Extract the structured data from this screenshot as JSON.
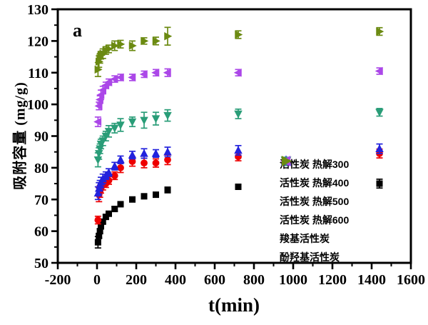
{
  "panel_label": "a",
  "chart_data": {
    "type": "scatter",
    "title": "",
    "xlabel": "t(min)",
    "ylabel": "吸附容量 (mg/g)",
    "xlim": [
      -200,
      1600
    ],
    "ylim": [
      50,
      130
    ],
    "x_ticks": [
      -200,
      0,
      200,
      400,
      600,
      800,
      1000,
      1200,
      1400,
      1600
    ],
    "x_minor_step": 100,
    "y_ticks": [
      50,
      60,
      70,
      80,
      90,
      100,
      110,
      120,
      130
    ],
    "y_minor_step": 5,
    "grid": false,
    "legend_position": "inside lower right",
    "error_bars": true,
    "x": [
      5,
      10,
      15,
      20,
      30,
      45,
      60,
      90,
      120,
      180,
      240,
      300,
      360,
      720,
      1440
    ],
    "series": [
      {
        "key": "ac-pyrolysis-300",
        "name": "活性炭 热解300",
        "marker": "square",
        "color": "#000000",
        "values": [
          56.5,
          58.5,
          60,
          61.5,
          63,
          64.5,
          65.5,
          67,
          68.5,
          70,
          71,
          71.5,
          73,
          74,
          75
        ],
        "errors": [
          1.8,
          0.7,
          0.7,
          0.7,
          0.7,
          0.7,
          0.7,
          0.7,
          0.7,
          0.7,
          0.7,
          0.7,
          0.9,
          0.8,
          1.4
        ]
      },
      {
        "key": "ac-pyrolysis-400",
        "name": "活性炭 热解400",
        "marker": "circle",
        "color": "#ee0000",
        "values": [
          63.5,
          71.5,
          72.5,
          73.5,
          74.5,
          75,
          76,
          77.5,
          80,
          82,
          81.5,
          81.5,
          82.5,
          83.5,
          84.5
        ],
        "errors": [
          1.2,
          2.2,
          1.8,
          1.5,
          1.5,
          1.2,
          1.2,
          1.2,
          1.5,
          1.5,
          1.5,
          1.3,
          1.5,
          1.3,
          1.4
        ]
      },
      {
        "key": "ac-pyrolysis-500",
        "name": "活性炭 热解500",
        "marker": "triangle-up",
        "color": "#2222dd",
        "values": [
          72,
          73.5,
          74.5,
          75.5,
          76.5,
          77.5,
          78.5,
          80.5,
          82.5,
          84,
          84.5,
          84.5,
          85,
          85.5,
          86
        ],
        "errors": [
          2.0,
          1.8,
          1.5,
          1.5,
          1.5,
          1.2,
          1.2,
          1.2,
          1.2,
          1.2,
          1.5,
          1.2,
          1.5,
          1.5,
          1.5
        ]
      },
      {
        "key": "ac-pyrolysis-600",
        "name": "活性炭 热解600",
        "marker": "triangle-down",
        "color": "#2a9d78",
        "values": [
          82.5,
          84.5,
          86,
          87.5,
          88.5,
          90,
          91.5,
          92.5,
          93.5,
          94.5,
          95,
          95.5,
          96.5,
          97,
          97.5
        ],
        "errors": [
          2.2,
          1.8,
          1.5,
          1.5,
          1.5,
          1.5,
          1.8,
          1.5,
          2.0,
          1.5,
          2.5,
          2.0,
          1.8,
          1.5,
          1.2
        ]
      },
      {
        "key": "carboxyl-ac",
        "name": "羧基活性炭",
        "marker": "triangle-left",
        "color": "#ab47e8",
        "values": [
          94.5,
          99.5,
          101.5,
          103,
          104.5,
          106,
          107,
          108,
          108.5,
          108.5,
          109.5,
          110,
          110,
          110,
          110.5
        ],
        "errors": [
          1.5,
          1.2,
          1.2,
          1.5,
          1.2,
          1.0,
          1.0,
          1.0,
          1.0,
          1.0,
          1.0,
          1.0,
          1.2,
          1.0,
          1.0
        ]
      },
      {
        "key": "phenolic-hydroxyl-ac",
        "name": "酚羟基活性炭",
        "marker": "triangle-right",
        "color": "#6b8a11",
        "values": [
          111,
          113.5,
          114.5,
          115.5,
          116,
          117,
          117.5,
          118.5,
          119,
          118.5,
          120,
          120,
          121.5,
          122,
          123
        ],
        "errors": [
          2.2,
          1.8,
          1.5,
          1.2,
          1.5,
          1.2,
          1.2,
          1.5,
          1.2,
          1.5,
          1.0,
          1.2,
          2.8,
          1.2,
          1.2
        ]
      }
    ]
  }
}
